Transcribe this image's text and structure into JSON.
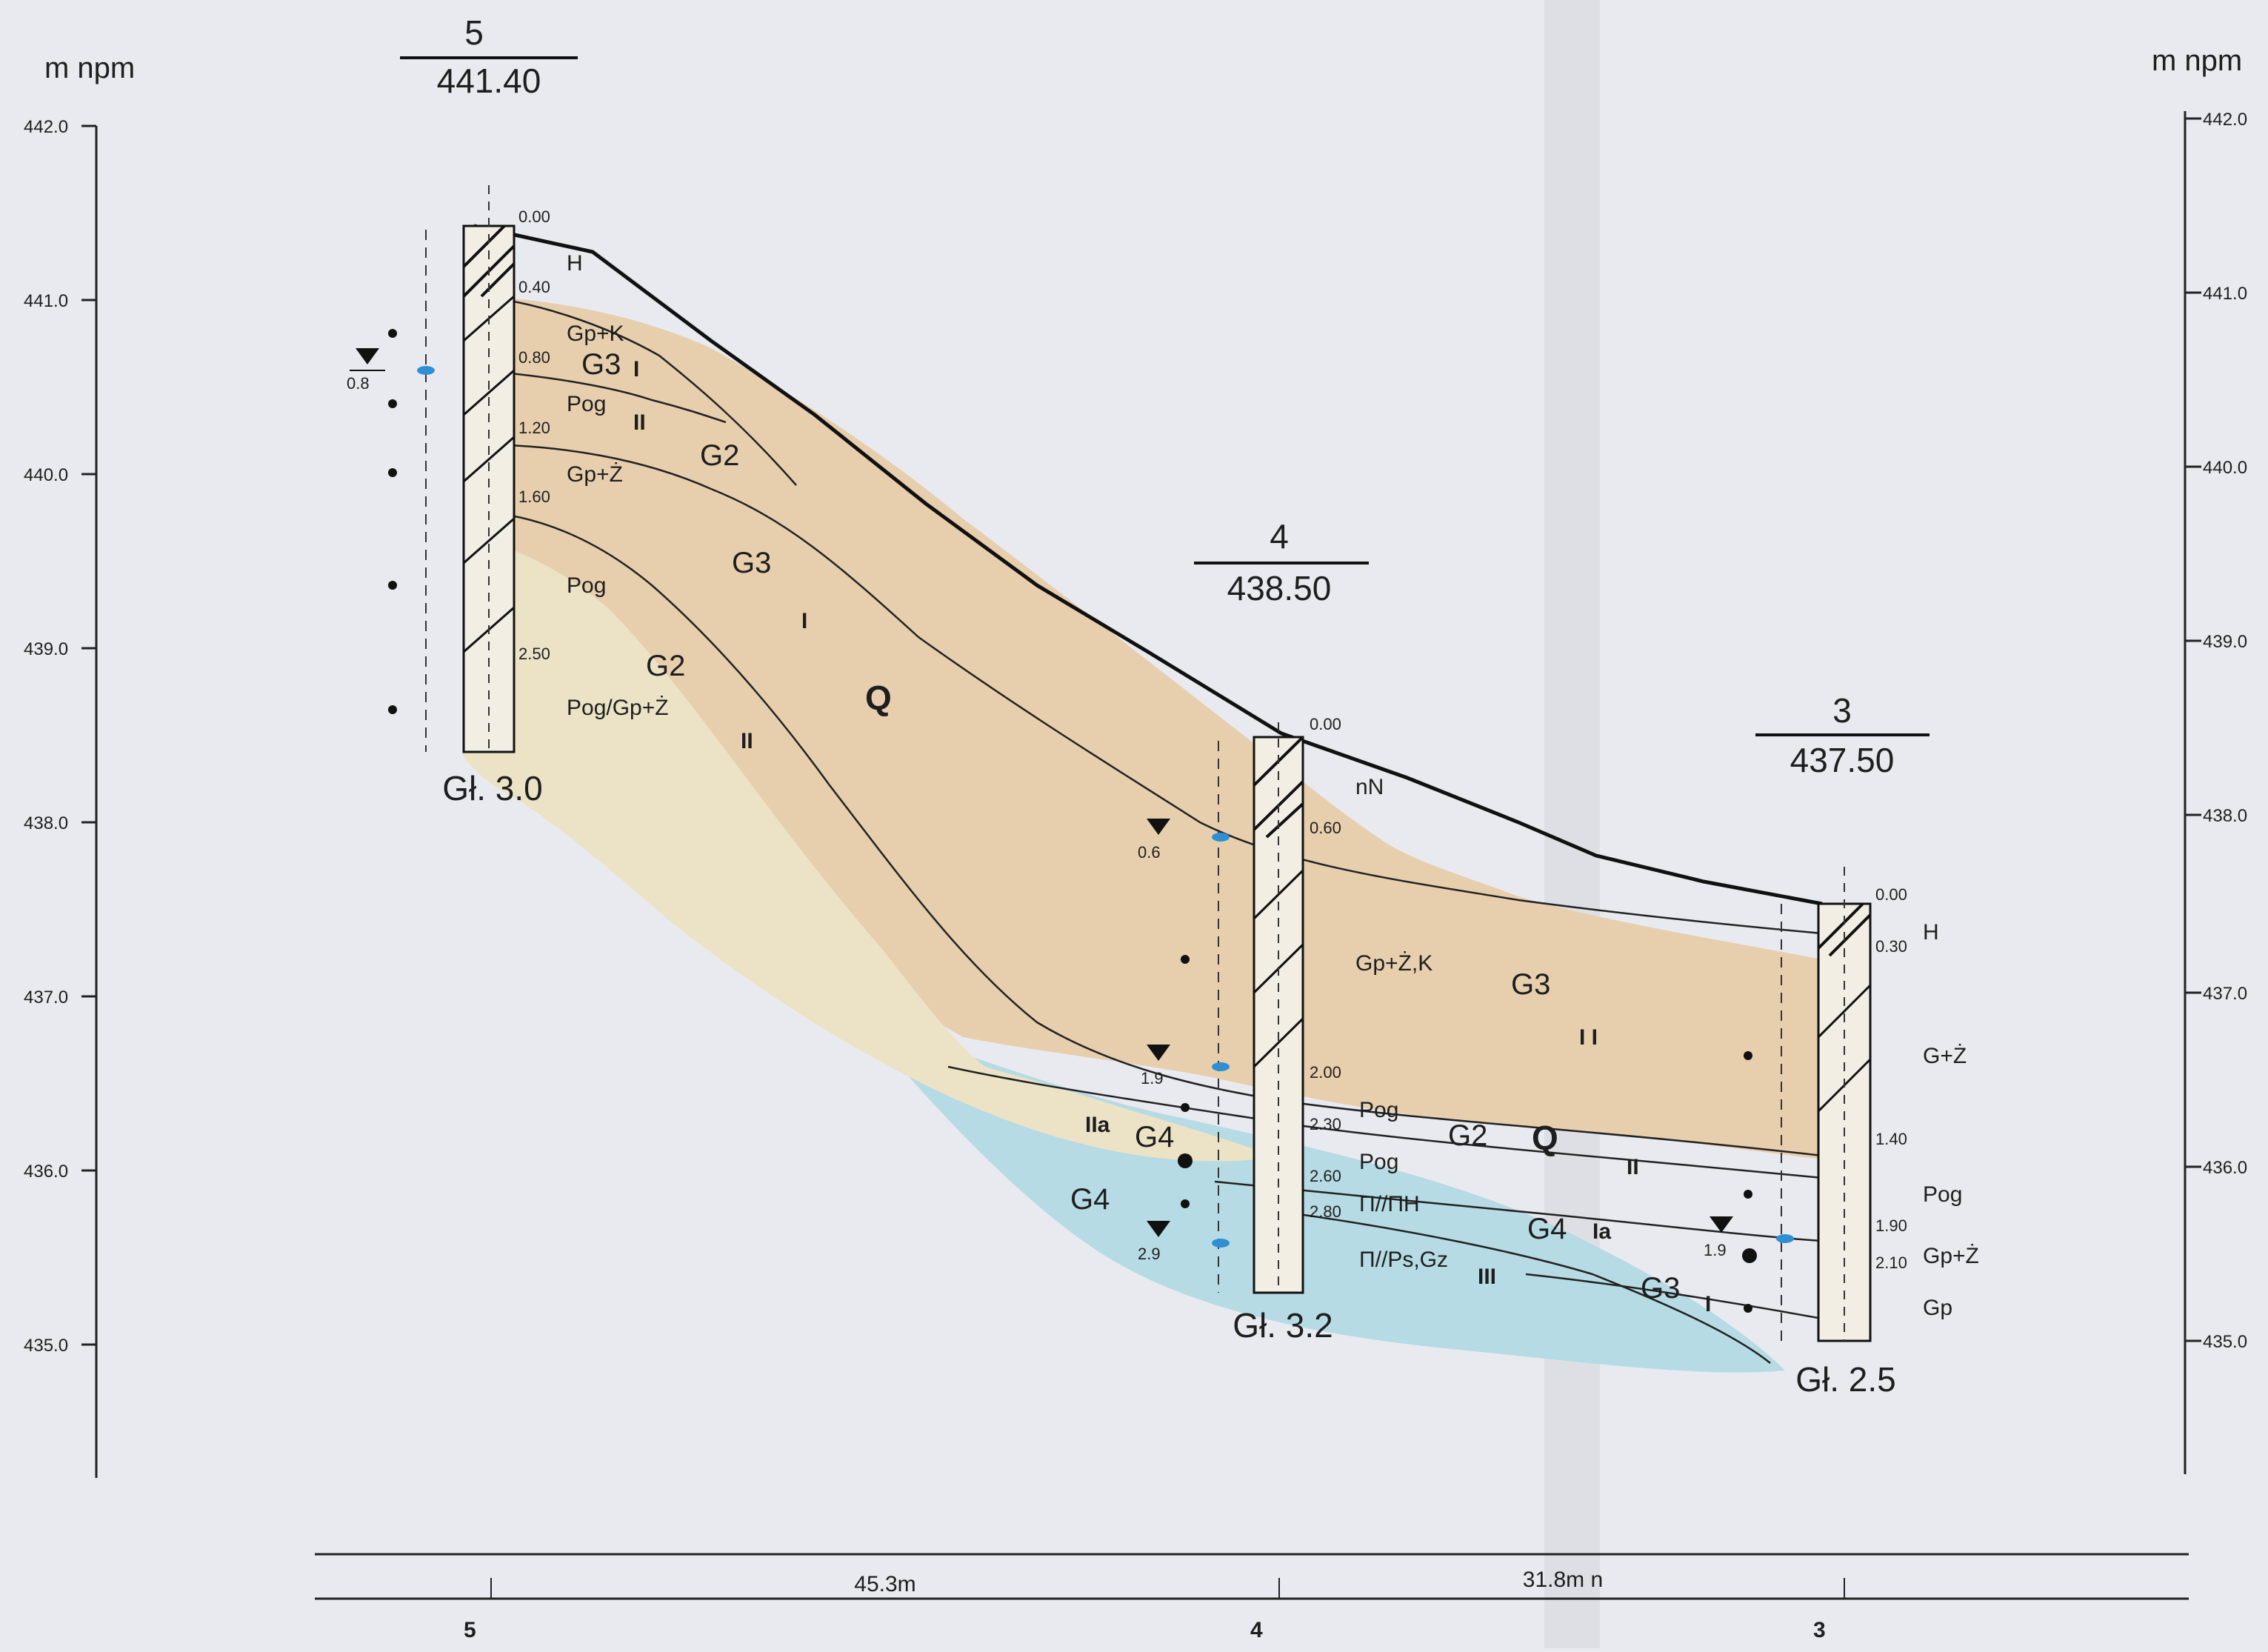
{
  "colors": {
    "paper": "#e9eaf0",
    "layer_upper": "#e7cfae",
    "layer_lower": "#ece3c6",
    "water_zone": "#b6dbe4",
    "ink": "#1e1e1e",
    "water_mark": "#2f8fd3"
  },
  "axis": {
    "unit_left": "m npm",
    "unit_right": "m npm",
    "ticks": [
      "442.0",
      "441.0",
      "440.0",
      "439.0",
      "438.0",
      "437.0",
      "436.0",
      "435.0"
    ]
  },
  "boreholes": [
    {
      "number": "5",
      "elevation": "441.40",
      "depth_label": "Gł. 3.0",
      "depths": [
        "0.00",
        "0.40",
        "0.80",
        "1.20",
        "1.60",
        "2.50"
      ],
      "soils": [
        "H",
        "Gp+K",
        "Pog",
        "Gp+Ż",
        "Pog",
        "Pog/Gp+Ż"
      ],
      "water_level": "0.8"
    },
    {
      "number": "4",
      "elevation": "438.50",
      "depth_label": "Gł. 3.2",
      "depths": [
        "0.00",
        "0.60",
        "2.00",
        "2.30",
        "2.60",
        "2.80"
      ],
      "soils": [
        "nN",
        "Gp+Ż,K",
        "Pog",
        "Pog",
        "Π//ΠH",
        "Π//Ps,Gz"
      ],
      "water_levels": [
        "0.6",
        "1.9",
        "2.9"
      ]
    },
    {
      "number": "3",
      "elevation": "437.50",
      "depth_label": "Gł. 2.5",
      "depths": [
        "0.00",
        "0.30",
        "1.40",
        "1.90",
        "2.10"
      ],
      "soils": [
        "H",
        "G+Ż",
        "Pog",
        "Gp+Ż",
        "Gp"
      ],
      "water_level": "1.9"
    }
  ],
  "layer_labels": {
    "geotech": [
      "G3",
      "G2",
      "G3",
      "G2",
      "G3",
      "G4",
      "G4",
      "G2",
      "G4",
      "G3"
    ],
    "stratigraphy": "Q",
    "roman": [
      "I",
      "II",
      "I",
      "II",
      "IIa",
      "I I",
      "II",
      "Ia",
      "III",
      "I"
    ]
  },
  "distances": {
    "span_5_4": "45.3m",
    "span_4_3": "31.8m n",
    "bottom_numbers": [
      "5",
      "4",
      "3"
    ]
  }
}
